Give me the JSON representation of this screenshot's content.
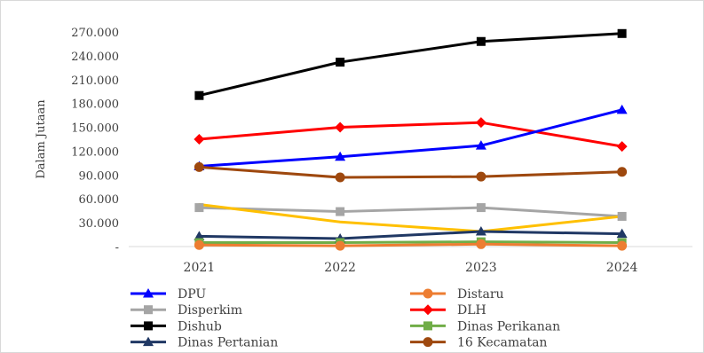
{
  "chart_data": {
    "type": "line",
    "title": "",
    "xlabel": "",
    "ylabel": "Dalam Jutaan",
    "categories": [
      "2021",
      "2022",
      "2023",
      "2024"
    ],
    "ylim": [
      0,
      270000
    ],
    "y_ticks": [
      0,
      30000,
      60000,
      90000,
      120000,
      150000,
      180000,
      210000,
      240000,
      270000
    ],
    "y_tick_labels": [
      "-",
      "30.000",
      "60.000",
      "90.000",
      "120.000",
      "150.000",
      "180.000",
      "210.000",
      "240.000",
      "270.000"
    ],
    "grid": false,
    "legend_position": "bottom",
    "series": [
      {
        "name": "DPU",
        "values": [
          101000,
          113000,
          127000,
          172000
        ],
        "color": "#0000FF",
        "marker": "triangle"
      },
      {
        "name": "Distaru",
        "values": [
          2000,
          1000,
          3000,
          1000
        ],
        "color": "#ED7D31",
        "marker": "circle"
      },
      {
        "name": "Disperkim",
        "values": [
          49000,
          44000,
          49000,
          38000
        ],
        "color": "#A5A5A5",
        "marker": "square"
      },
      {
        "name": "DLH",
        "values": [
          135000,
          150000,
          156000,
          126000
        ],
        "color": "#FF0000",
        "marker": "diamond"
      },
      {
        "name": "Dishub",
        "values": [
          190000,
          232000,
          258000,
          268000
        ],
        "color": "#000000",
        "marker": "square"
      },
      {
        "name": "Dinas Perikanan",
        "values": [
          5000,
          5000,
          6000,
          5000
        ],
        "color": "#70AD47",
        "marker": "square"
      },
      {
        "name": "Dinas Pertanian",
        "values": [
          13000,
          10000,
          19000,
          16000
        ],
        "color": "#203864",
        "marker": "triangle"
      },
      {
        "name": "16 Kecamatan",
        "values": [
          100000,
          87000,
          88000,
          94000
        ],
        "color": "#9E480E",
        "marker": "circle"
      },
      {
        "name": "",
        "values": [
          53000,
          31000,
          19000,
          38000
        ],
        "color": "#FFC000",
        "marker": "none"
      }
    ]
  }
}
